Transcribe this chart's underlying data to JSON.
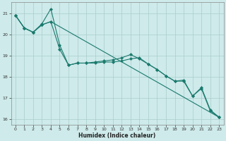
{
  "xlabel": "Humidex (Indice chaleur)",
  "background_color": "#ceeaea",
  "line_color": "#1a7a6e",
  "grid_color": "#aacccc",
  "xlim": [
    -0.5,
    23.5
  ],
  "ylim": [
    15.75,
    21.5
  ],
  "yticks": [
    16,
    17,
    18,
    19,
    20,
    21
  ],
  "xticks": [
    0,
    1,
    2,
    3,
    4,
    5,
    6,
    7,
    8,
    9,
    10,
    11,
    12,
    13,
    14,
    15,
    16,
    17,
    18,
    19,
    20,
    21,
    22,
    23
  ],
  "series": [
    {
      "x": [
        0,
        1,
        2,
        3,
        4,
        5,
        6,
        7,
        8,
        9,
        10,
        11,
        12,
        13,
        14,
        15,
        16,
        17,
        18,
        19,
        20,
        21,
        22,
        23
      ],
      "y": [
        20.9,
        20.3,
        20.1,
        20.45,
        20.6,
        19.3,
        18.55,
        18.65,
        18.65,
        18.65,
        18.7,
        18.7,
        18.75,
        18.85,
        18.9,
        18.6,
        18.35,
        18.05,
        17.8,
        17.8,
        17.1,
        17.45,
        16.4,
        16.1
      ]
    },
    {
      "x": [
        0,
        1,
        2,
        3,
        4,
        5,
        6,
        7,
        8,
        9,
        10,
        11,
        12,
        13,
        14,
        15,
        16,
        17,
        18,
        19,
        20,
        21,
        22,
        23
      ],
      "y": [
        20.9,
        20.3,
        20.1,
        20.5,
        21.2,
        19.5,
        18.55,
        18.65,
        18.65,
        18.7,
        18.75,
        18.8,
        18.9,
        19.05,
        18.85,
        18.6,
        18.35,
        18.05,
        17.8,
        17.85,
        17.1,
        17.5,
        16.45,
        16.1
      ]
    },
    {
      "x": [
        0,
        1,
        2,
        3,
        4,
        23
      ],
      "y": [
        20.9,
        20.3,
        20.1,
        20.45,
        20.6,
        16.1
      ]
    }
  ]
}
